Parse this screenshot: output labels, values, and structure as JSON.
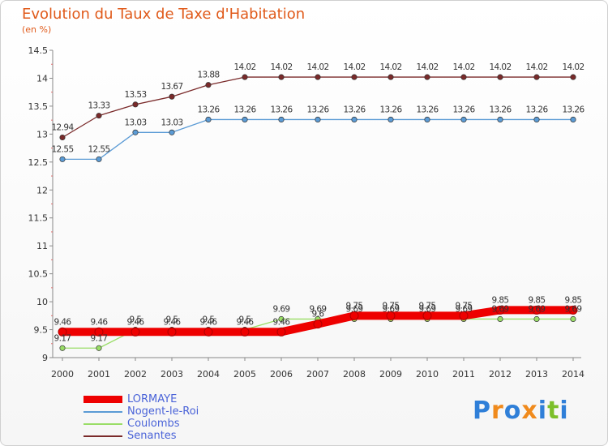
{
  "header": {
    "title": "Evolution du Taux de Taxe d'Habitation",
    "subtitle": "(en %)"
  },
  "logo": {
    "text": "Proxiti",
    "colors": [
      "#2f7fd8",
      "#f08a1c",
      "#2f7fd8",
      "#f08a1c",
      "#2f7fd8",
      "#7cbf2a",
      "#2f7fd8"
    ]
  },
  "chart_data": {
    "type": "line",
    "x": [
      2000,
      2001,
      2002,
      2003,
      2004,
      2005,
      2006,
      2007,
      2008,
      2009,
      2010,
      2011,
      2012,
      2013,
      2014
    ],
    "ylim": [
      9,
      14.5
    ],
    "yticks": [
      "9",
      "9.5",
      "10",
      "10.5",
      "11",
      "11.5",
      "12",
      "12.5",
      "13",
      "13.5",
      "14",
      "14.5"
    ],
    "grid": false,
    "legend_position": "bottom-left",
    "series": [
      {
        "name": "LORMAYE",
        "color": "#ee0000",
        "values": [
          9.46,
          9.46,
          9.46,
          9.46,
          9.46,
          9.46,
          9.46,
          9.6,
          9.75,
          9.75,
          9.75,
          9.75,
          9.85,
          9.85,
          9.85
        ],
        "labels": [
          "9.46",
          "9.46",
          "9.46",
          "9.46",
          "9.46",
          "9.46",
          "9.46",
          "9.6",
          "9.75",
          "9.75",
          "9.75",
          "9.75",
          "9.85",
          "9.85",
          "9.85"
        ]
      },
      {
        "name": "Nogent-le-Roi",
        "color": "#5b9bd5",
        "values": [
          12.55,
          12.55,
          13.03,
          13.03,
          13.26,
          13.26,
          13.26,
          13.26,
          13.26,
          13.26,
          13.26,
          13.26,
          13.26,
          13.26,
          13.26
        ],
        "labels": [
          "12.55",
          "12.55",
          "13.03",
          "13.03",
          "13.26",
          "13.26",
          "13.26",
          "13.26",
          "13.26",
          "13.26",
          "13.26",
          "13.26",
          "13.26",
          "13.26",
          "13.26"
        ]
      },
      {
        "name": "Coulombs",
        "color": "#99dd66",
        "values": [
          9.17,
          9.17,
          9.5,
          9.5,
          9.5,
          9.5,
          9.69,
          9.69,
          9.69,
          9.69,
          9.69,
          9.69,
          9.69,
          9.69,
          9.69
        ],
        "labels": [
          "9.17",
          "9.17",
          "9.5",
          "9.5",
          "9.5",
          "9.5",
          "9.69",
          "9.69",
          "9.69",
          "9.69",
          "9.69",
          "9.69",
          "9.69",
          "9.69",
          "9.69"
        ]
      },
      {
        "name": "Senantes",
        "color": "#7a2a2a",
        "values": [
          12.94,
          13.33,
          13.53,
          13.67,
          13.88,
          14.02,
          14.02,
          14.02,
          14.02,
          14.02,
          14.02,
          14.02,
          14.02,
          14.02,
          14.02
        ],
        "labels": [
          "12.94",
          "13.33",
          "13.53",
          "13.67",
          "13.88",
          "14.02",
          "14.02",
          "14.02",
          "14.02",
          "14.02",
          "14.02",
          "14.02",
          "14.02",
          "14.02",
          "14.02"
        ]
      }
    ]
  }
}
